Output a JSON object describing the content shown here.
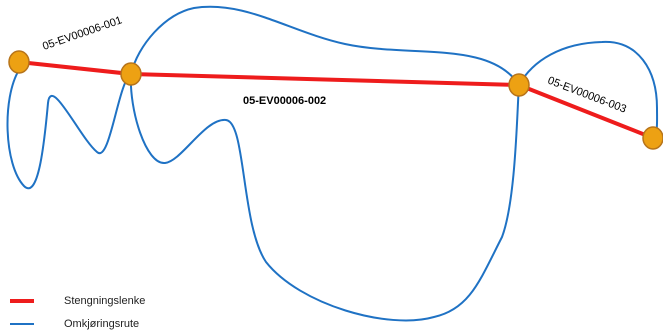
{
  "diagram": {
    "links": [
      {
        "id": "05-EV00006-001"
      },
      {
        "id": "05-EV00006-002"
      },
      {
        "id": "05-EV00006-003"
      }
    ],
    "legend": {
      "closure_label": "Stengningslenke",
      "detour_label": "Omkjøringsrute"
    },
    "colors": {
      "closure": "#ee1c1c",
      "detour": "#1f72c4",
      "node_fill": "#eda113",
      "node_stroke": "#b7741a"
    }
  }
}
